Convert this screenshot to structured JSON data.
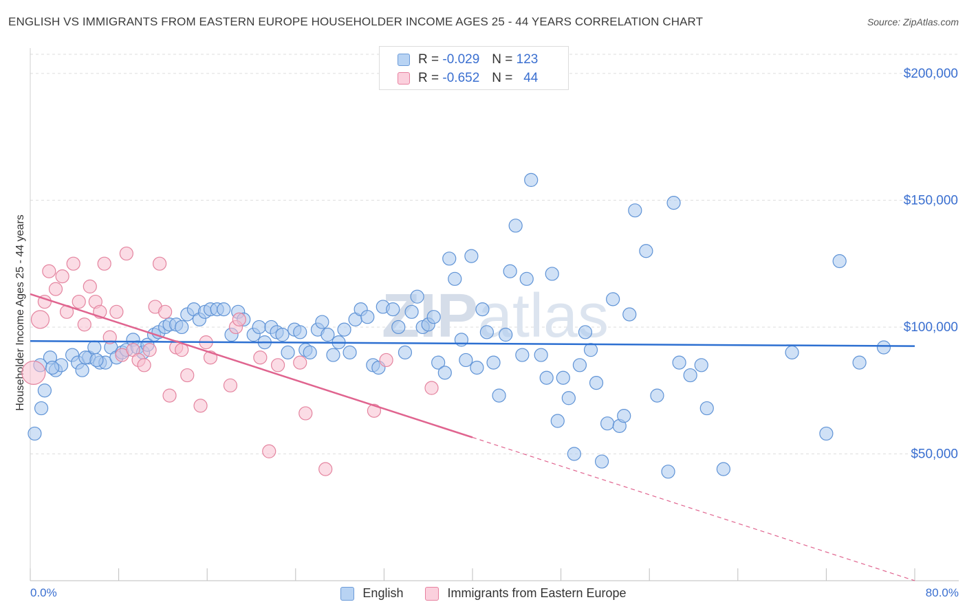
{
  "title": "ENGLISH VS IMMIGRANTS FROM EASTERN EUROPE HOUSEHOLDER INCOME AGES 25 - 44 YEARS CORRELATION CHART",
  "source": "Source: ZipAtlas.com",
  "watermark": "ZIPatlas",
  "legend_top": {
    "rows": [
      {
        "r_label": "R =",
        "r_value": "-0.029",
        "n_label": "N =",
        "n_value": "123",
        "color": "#a9c8ef",
        "border": "#6a9ad8"
      },
      {
        "r_label": "R =",
        "r_value": "-0.652",
        "n_label": "N =",
        "n_value": "44",
        "color": "#f7bfd0",
        "border": "#e7809f"
      }
    ]
  },
  "legend_bottom": [
    {
      "label": "English",
      "color": "#b8d3f3",
      "border": "#6a9ad8"
    },
    {
      "label": "Immigrants from Eastern Europe",
      "color": "#fbd0dd",
      "border": "#e7809f"
    }
  ],
  "colors": {
    "english_fill": "#a9c8ef",
    "english_stroke": "#5f93d6",
    "english_line": "#2c6fd1",
    "immigrant_fill": "#f7bfd0",
    "immigrant_stroke": "#e4849f",
    "immigrant_line": "#e0648f",
    "grid": "#dddddd",
    "tick_text": "#3a6fd0"
  },
  "chart_data": {
    "type": "scatter",
    "title": "ENGLISH VS IMMIGRANTS FROM EASTERN EUROPE HOUSEHOLDER INCOME AGES 25 - 44 YEARS CORRELATION CHART",
    "xlabel": "",
    "ylabel": "Householder Income Ages 25 - 44 years",
    "xlim": [
      0,
      80
    ],
    "ylim": [
      0,
      210000
    ],
    "x_tick_labels": [
      "0.0%",
      "80.0%"
    ],
    "y_ticks": [
      50000,
      100000,
      150000,
      200000
    ],
    "y_tick_labels": [
      "$50,000",
      "$100,000",
      "$150,000",
      "$200,000"
    ],
    "grid": true,
    "legend_position": "top-center",
    "series": [
      {
        "name": "English",
        "r": -0.029,
        "n": 123,
        "trend": {
          "x": [
            0,
            80
          ],
          "y": [
            94500,
            92500
          ],
          "dashed_from": null
        },
        "points": [
          [
            0.4,
            58000
          ],
          [
            1.0,
            68000
          ],
          [
            1.3,
            75000
          ],
          [
            1.8,
            88000
          ],
          [
            2.3,
            83000
          ],
          [
            2.8,
            85000
          ],
          [
            3.8,
            89000
          ],
          [
            4.3,
            86000
          ],
          [
            4.7,
            83000
          ],
          [
            5.3,
            88000
          ],
          [
            5.8,
            92000
          ],
          [
            6.3,
            86000
          ],
          [
            6.8,
            86000
          ],
          [
            7.3,
            92000
          ],
          [
            7.8,
            88000
          ],
          [
            8.3,
            90000
          ],
          [
            8.7,
            91000
          ],
          [
            9.3,
            95000
          ],
          [
            9.7,
            92000
          ],
          [
            10.2,
            90000
          ],
          [
            10.6,
            93000
          ],
          [
            11.2,
            97000
          ],
          [
            11.6,
            98000
          ],
          [
            12.2,
            100000
          ],
          [
            12.6,
            101000
          ],
          [
            13.2,
            101000
          ],
          [
            13.7,
            100000
          ],
          [
            14.2,
            105000
          ],
          [
            14.8,
            107000
          ],
          [
            15.3,
            103000
          ],
          [
            15.8,
            106000
          ],
          [
            16.3,
            107000
          ],
          [
            16.9,
            107000
          ],
          [
            17.5,
            107000
          ],
          [
            18.2,
            97000
          ],
          [
            18.8,
            106000
          ],
          [
            19.3,
            103000
          ],
          [
            20.2,
            97000
          ],
          [
            20.7,
            100000
          ],
          [
            21.2,
            94000
          ],
          [
            21.8,
            100000
          ],
          [
            22.3,
            98000
          ],
          [
            22.8,
            97000
          ],
          [
            23.3,
            90000
          ],
          [
            23.9,
            99000
          ],
          [
            24.4,
            98000
          ],
          [
            24.9,
            91000
          ],
          [
            25.3,
            90000
          ],
          [
            26.0,
            99000
          ],
          [
            26.4,
            102000
          ],
          [
            26.9,
            97000
          ],
          [
            27.4,
            89000
          ],
          [
            27.9,
            94000
          ],
          [
            28.4,
            99000
          ],
          [
            28.9,
            90000
          ],
          [
            29.4,
            103000
          ],
          [
            29.9,
            107000
          ],
          [
            30.5,
            104000
          ],
          [
            31.0,
            85000
          ],
          [
            31.5,
            84000
          ],
          [
            31.9,
            108000
          ],
          [
            32.8,
            107000
          ],
          [
            33.3,
            100000
          ],
          [
            33.9,
            90000
          ],
          [
            34.5,
            106000
          ],
          [
            35.0,
            112000
          ],
          [
            35.5,
            100000
          ],
          [
            36.0,
            101000
          ],
          [
            36.5,
            104000
          ],
          [
            36.9,
            86000
          ],
          [
            37.5,
            82000
          ],
          [
            37.9,
            127000
          ],
          [
            38.4,
            119000
          ],
          [
            39.0,
            95000
          ],
          [
            39.4,
            87000
          ],
          [
            39.9,
            128000
          ],
          [
            40.4,
            84000
          ],
          [
            40.9,
            107000
          ],
          [
            41.3,
            98000
          ],
          [
            41.9,
            86000
          ],
          [
            42.4,
            73000
          ],
          [
            43.0,
            97000
          ],
          [
            43.4,
            122000
          ],
          [
            43.9,
            140000
          ],
          [
            44.5,
            89000
          ],
          [
            44.9,
            119000
          ],
          [
            45.3,
            158000
          ],
          [
            46.2,
            89000
          ],
          [
            46.7,
            80000
          ],
          [
            47.2,
            121000
          ],
          [
            47.7,
            63000
          ],
          [
            48.2,
            80000
          ],
          [
            48.7,
            72000
          ],
          [
            49.2,
            50000
          ],
          [
            49.7,
            85000
          ],
          [
            50.2,
            98000
          ],
          [
            50.7,
            91000
          ],
          [
            51.2,
            78000
          ],
          [
            51.7,
            47000
          ],
          [
            52.2,
            62000
          ],
          [
            52.7,
            111000
          ],
          [
            53.3,
            61000
          ],
          [
            53.7,
            65000
          ],
          [
            54.2,
            105000
          ],
          [
            54.7,
            146000
          ],
          [
            55.7,
            130000
          ],
          [
            56.7,
            73000
          ],
          [
            57.7,
            43000
          ],
          [
            58.2,
            149000
          ],
          [
            58.7,
            86000
          ],
          [
            59.7,
            81000
          ],
          [
            60.7,
            85000
          ],
          [
            61.2,
            68000
          ],
          [
            62.7,
            44000
          ],
          [
            68.9,
            90000
          ],
          [
            72.0,
            58000
          ],
          [
            73.2,
            126000
          ],
          [
            75.0,
            86000
          ],
          [
            77.2,
            92000
          ],
          [
            0.9,
            85000
          ],
          [
            2.0,
            84000
          ],
          [
            5.0,
            88000
          ],
          [
            6.0,
            87000
          ]
        ]
      },
      {
        "name": "Immigrants from Eastern Europe",
        "r": -0.652,
        "n": 44,
        "trend": {
          "x": [
            0,
            80
          ],
          "y": [
            113000,
            0
          ],
          "dashed_from": 40
        },
        "points": [
          [
            0.3,
            82000
          ],
          [
            0.9,
            103000
          ],
          [
            1.3,
            110000
          ],
          [
            1.7,
            122000
          ],
          [
            2.3,
            115000
          ],
          [
            2.9,
            120000
          ],
          [
            3.3,
            106000
          ],
          [
            3.9,
            125000
          ],
          [
            4.4,
            110000
          ],
          [
            4.9,
            101000
          ],
          [
            5.4,
            116000
          ],
          [
            5.9,
            110000
          ],
          [
            6.3,
            106000
          ],
          [
            6.7,
            125000
          ],
          [
            7.2,
            96000
          ],
          [
            7.8,
            106000
          ],
          [
            8.3,
            89000
          ],
          [
            8.7,
            129000
          ],
          [
            9.3,
            91000
          ],
          [
            9.8,
            87000
          ],
          [
            10.3,
            85000
          ],
          [
            10.8,
            91000
          ],
          [
            11.3,
            108000
          ],
          [
            11.7,
            125000
          ],
          [
            12.2,
            106000
          ],
          [
            12.6,
            73000
          ],
          [
            13.2,
            92000
          ],
          [
            13.7,
            91000
          ],
          [
            14.2,
            81000
          ],
          [
            15.4,
            69000
          ],
          [
            15.9,
            94000
          ],
          [
            16.3,
            88000
          ],
          [
            18.1,
            77000
          ],
          [
            18.6,
            100000
          ],
          [
            18.9,
            103000
          ],
          [
            20.8,
            88000
          ],
          [
            21.6,
            51000
          ],
          [
            22.4,
            85000
          ],
          [
            24.4,
            86000
          ],
          [
            24.9,
            66000
          ],
          [
            26.7,
            44000
          ],
          [
            31.1,
            67000
          ],
          [
            32.2,
            87000
          ],
          [
            36.3,
            76000
          ]
        ]
      }
    ]
  }
}
